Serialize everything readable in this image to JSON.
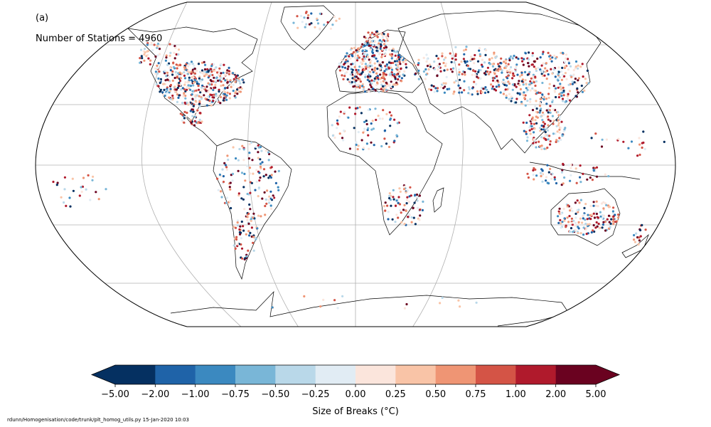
{
  "panel_label": "(a)",
  "station_count_text": "Number of Stations = 4960",
  "colorbar": {
    "title": "Size of Breaks (°C)",
    "ticks": [
      "−5.00",
      "−2.00",
      "−1.00",
      "−0.75",
      "−0.50",
      "−0.25",
      "0.00",
      "0.25",
      "0.50",
      "0.75",
      "1.00",
      "2.00",
      "5.00"
    ],
    "colors": [
      "#053061",
      "#2166ac",
      "#4393c3",
      "#92c5de",
      "#d1e5f0",
      "#f0f0f0",
      "#fddbc7",
      "#f4a582",
      "#d6604d",
      "#b2182b",
      "#67001f"
    ],
    "bins": [
      "#053061",
      "#1f63a8",
      "#3b89c0",
      "#79b6d7",
      "#b9d8e9",
      "#e1ecf4",
      "#fbe5dc",
      "#f9c4a7",
      "#ef9574",
      "#d45446",
      "#b01a2c",
      "#6a0220"
    ],
    "extend": "both"
  },
  "footer": "rdunn/Homogenisation/code/trunk/plt_homog_utils.py   15-Jan-2020 10:03",
  "projection": "Robinson",
  "gridlines": true
}
